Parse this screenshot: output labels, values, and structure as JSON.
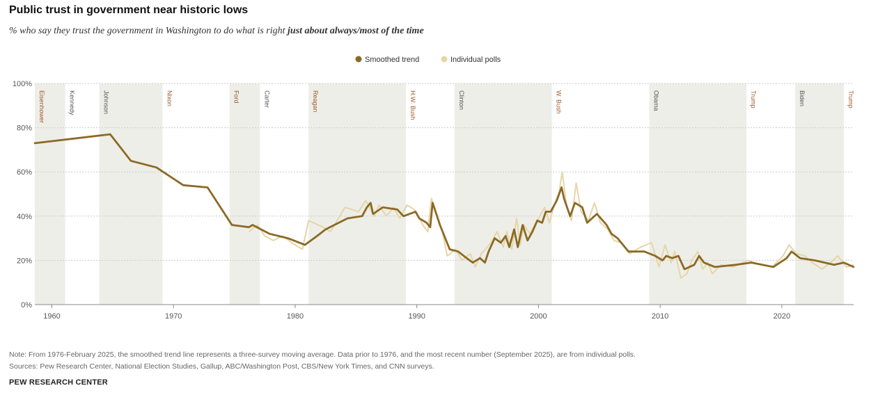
{
  "header": {
    "title": "Public trust in government near historic lows",
    "subtitle_plain": "% who say they trust the government in Washington to do what is right ",
    "subtitle_bold": "just about always/most of the time"
  },
  "footer": {
    "note": "Note: From 1976-February 2025, the smoothed trend line represents a three-survey moving average. Data prior to 1976, and the most recent number (September 2025), are from individual polls.",
    "sources": "Sources: Pew Research Center, National Election Studies, Gallup, ABC/Washington Post, CBS/New York Times, and CNN surveys.",
    "brand": "PEW RESEARCH CENTER"
  },
  "colors": {
    "trend": "#8a6a25",
    "polls": "#e6d5a8",
    "band": "#eeeee8",
    "dem_label": "#555555",
    "rep_label": "#9b5a2a",
    "axis": "#888888",
    "grid": "#cccccc"
  },
  "chart_data": {
    "type": "line",
    "title": "Public trust in government near historic lows",
    "xlabel": "",
    "ylabel": "",
    "xlim": [
      1958.6,
      2025.9
    ],
    "ylim": [
      0,
      100
    ],
    "x_ticks": [
      1960,
      1970,
      1980,
      1990,
      2000,
      2010,
      2020
    ],
    "y_ticks": [
      0,
      20,
      40,
      60,
      80,
      100
    ],
    "y_tick_labels": [
      "0%",
      "20%",
      "40%",
      "60%",
      "80%",
      "100%"
    ],
    "legend": {
      "position": "top-center",
      "entries": [
        "Smoothed trend",
        "Individual polls"
      ]
    },
    "presidents": [
      {
        "name": "Eisenhower",
        "start": 1958.6,
        "end": 1961.1,
        "party": "R",
        "shaded": true
      },
      {
        "name": "Kennedy",
        "start": 1961.1,
        "end": 1963.9,
        "party": "D",
        "shaded": false
      },
      {
        "name": "Johnson",
        "start": 1963.9,
        "end": 1969.1,
        "party": "D",
        "shaded": true
      },
      {
        "name": "Nixon",
        "start": 1969.1,
        "end": 1974.6,
        "party": "R",
        "shaded": false
      },
      {
        "name": "Ford",
        "start": 1974.6,
        "end": 1977.1,
        "party": "R",
        "shaded": true
      },
      {
        "name": "Carter",
        "start": 1977.1,
        "end": 1981.1,
        "party": "D",
        "shaded": false
      },
      {
        "name": "Reagan",
        "start": 1981.1,
        "end": 1989.1,
        "party": "R",
        "shaded": true
      },
      {
        "name": "H.W. Bush",
        "start": 1989.1,
        "end": 1993.1,
        "party": "R",
        "shaded": false
      },
      {
        "name": "Clinton",
        "start": 1993.1,
        "end": 2001.1,
        "party": "D",
        "shaded": true
      },
      {
        "name": "W. Bush",
        "start": 2001.1,
        "end": 2009.1,
        "party": "R",
        "shaded": false
      },
      {
        "name": "Obama",
        "start": 2009.1,
        "end": 2017.1,
        "party": "D",
        "shaded": true
      },
      {
        "name": "Trump",
        "start": 2017.1,
        "end": 2021.1,
        "party": "R",
        "shaded": false
      },
      {
        "name": "Biden",
        "start": 2021.1,
        "end": 2025.1,
        "party": "D",
        "shaded": true
      },
      {
        "name": "Trump",
        "start": 2025.1,
        "end": 2025.9,
        "party": "R",
        "shaded": false
      }
    ],
    "series": [
      {
        "name": "Smoothed trend",
        "points": [
          [
            1958.6,
            73
          ],
          [
            1964.8,
            77
          ],
          [
            1966.5,
            65
          ],
          [
            1968.6,
            62
          ],
          [
            1970.8,
            54
          ],
          [
            1972.8,
            53
          ],
          [
            1974.8,
            36
          ],
          [
            1976.2,
            35
          ],
          [
            1976.5,
            36
          ],
          [
            1977.2,
            34
          ],
          [
            1977.9,
            32
          ],
          [
            1979.4,
            30
          ],
          [
            1980.8,
            27
          ],
          [
            1981.8,
            31
          ],
          [
            1982.5,
            34
          ],
          [
            1984.3,
            39
          ],
          [
            1985.5,
            40
          ],
          [
            1985.9,
            44
          ],
          [
            1986.2,
            46
          ],
          [
            1986.4,
            41
          ],
          [
            1987.2,
            44
          ],
          [
            1988.4,
            43
          ],
          [
            1988.9,
            40
          ],
          [
            1989.9,
            42
          ],
          [
            1990.2,
            39
          ],
          [
            1990.8,
            37
          ],
          [
            1991.1,
            35
          ],
          [
            1991.3,
            46
          ],
          [
            1991.9,
            36
          ],
          [
            1992.7,
            25
          ],
          [
            1993.4,
            24
          ],
          [
            1994.1,
            21
          ],
          [
            1994.6,
            19
          ],
          [
            1995.2,
            21
          ],
          [
            1995.6,
            19
          ],
          [
            1995.9,
            24
          ],
          [
            1996.4,
            30
          ],
          [
            1996.9,
            28
          ],
          [
            1997.3,
            31
          ],
          [
            1997.6,
            26
          ],
          [
            1998.0,
            34
          ],
          [
            1998.3,
            26
          ],
          [
            1998.7,
            36
          ],
          [
            1999.1,
            29
          ],
          [
            1999.5,
            33
          ],
          [
            1999.9,
            38
          ],
          [
            2000.3,
            37
          ],
          [
            2000.6,
            42
          ],
          [
            2001.0,
            42
          ],
          [
            2001.5,
            47
          ],
          [
            2001.9,
            53
          ],
          [
            2002.1,
            48
          ],
          [
            2002.6,
            40
          ],
          [
            2003.0,
            46
          ],
          [
            2003.6,
            44
          ],
          [
            2004.0,
            37
          ],
          [
            2004.8,
            41
          ],
          [
            2005.6,
            36
          ],
          [
            2006.0,
            32
          ],
          [
            2006.5,
            30
          ],
          [
            2007.4,
            24
          ],
          [
            2008.7,
            24
          ],
          [
            2009.6,
            22
          ],
          [
            2010.2,
            20
          ],
          [
            2010.5,
            22
          ],
          [
            2011.0,
            21
          ],
          [
            2011.5,
            22
          ],
          [
            2012.0,
            16
          ],
          [
            2012.8,
            18
          ],
          [
            2013.2,
            22
          ],
          [
            2013.6,
            19
          ],
          [
            2014.5,
            17
          ],
          [
            2016.2,
            18
          ],
          [
            2017.5,
            19
          ],
          [
            2019.3,
            17
          ],
          [
            2020.4,
            21
          ],
          [
            2020.8,
            24
          ],
          [
            2021.5,
            21
          ],
          [
            2022.7,
            20
          ],
          [
            2024.3,
            18
          ],
          [
            2025.1,
            19
          ],
          [
            2025.9,
            17
          ]
        ]
      },
      {
        "name": "Individual polls",
        "points": [
          [
            1976.2,
            33
          ],
          [
            1976.9,
            36
          ],
          [
            1977.5,
            31
          ],
          [
            1978.2,
            29
          ],
          [
            1979.0,
            31
          ],
          [
            1979.7,
            28
          ],
          [
            1980.6,
            25
          ],
          [
            1981.1,
            38
          ],
          [
            1982.3,
            35
          ],
          [
            1982.9,
            33
          ],
          [
            1984.1,
            44
          ],
          [
            1985.2,
            42
          ],
          [
            1985.8,
            47
          ],
          [
            1986.5,
            40
          ],
          [
            1986.9,
            45
          ],
          [
            1987.5,
            40
          ],
          [
            1988.1,
            44
          ],
          [
            1988.6,
            39
          ],
          [
            1989.2,
            45
          ],
          [
            1989.8,
            43
          ],
          [
            1990.5,
            36
          ],
          [
            1990.9,
            33
          ],
          [
            1991.2,
            48
          ],
          [
            1991.7,
            39
          ],
          [
            1992.1,
            33
          ],
          [
            1992.5,
            22
          ],
          [
            1993.2,
            25
          ],
          [
            1993.7,
            20
          ],
          [
            1994.4,
            23
          ],
          [
            1994.8,
            17
          ],
          [
            1995.3,
            23
          ],
          [
            1996.1,
            28
          ],
          [
            1996.6,
            33
          ],
          [
            1997.1,
            26
          ],
          [
            1997.4,
            33
          ],
          [
            1997.8,
            25
          ],
          [
            1998.2,
            39
          ],
          [
            1998.5,
            27
          ],
          [
            1998.8,
            36
          ],
          [
            1999.3,
            32
          ],
          [
            1999.7,
            36
          ],
          [
            2000.1,
            40
          ],
          [
            2000.5,
            44
          ],
          [
            2000.9,
            37
          ],
          [
            2001.3,
            45
          ],
          [
            2001.7,
            51
          ],
          [
            2001.95,
            60
          ],
          [
            2002.3,
            45
          ],
          [
            2002.7,
            38
          ],
          [
            2003.1,
            55
          ],
          [
            2003.5,
            42
          ],
          [
            2004.1,
            38
          ],
          [
            2004.6,
            46
          ],
          [
            2005.1,
            37
          ],
          [
            2005.7,
            34
          ],
          [
            2006.2,
            29
          ],
          [
            2006.8,
            28
          ],
          [
            2007.5,
            23
          ],
          [
            2008.4,
            26
          ],
          [
            2009.3,
            28
          ],
          [
            2009.9,
            17
          ],
          [
            2010.4,
            27
          ],
          [
            2010.9,
            19
          ],
          [
            2011.2,
            24
          ],
          [
            2011.7,
            12
          ],
          [
            2012.2,
            14
          ],
          [
            2012.6,
            20
          ],
          [
            2013.1,
            24
          ],
          [
            2013.5,
            16
          ],
          [
            2013.9,
            19
          ],
          [
            2014.3,
            14
          ],
          [
            2015.0,
            18
          ],
          [
            2016.0,
            17
          ],
          [
            2017.2,
            20
          ],
          [
            2018.3,
            18
          ],
          [
            2019.2,
            17
          ],
          [
            2020.1,
            22
          ],
          [
            2020.6,
            27
          ],
          [
            2021.2,
            23
          ],
          [
            2021.9,
            22
          ],
          [
            2022.5,
            19
          ],
          [
            2023.3,
            16
          ],
          [
            2024.0,
            19
          ],
          [
            2024.6,
            22
          ],
          [
            2025.3,
            17
          ],
          [
            2025.9,
            18
          ]
        ]
      }
    ]
  }
}
